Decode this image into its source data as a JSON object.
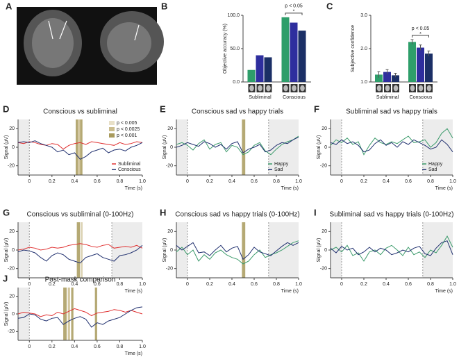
{
  "panel_labels": [
    "A",
    "B",
    "C",
    "D",
    "E",
    "F",
    "G",
    "H",
    "I",
    "J"
  ],
  "chart_data": [
    {
      "type": "bar",
      "ylabel": "Objective accuracy (%)",
      "categories": [
        "Subliminal",
        "Conscious"
      ],
      "series": [
        {
          "color": "#2e9e6a",
          "values": [
            18,
            97
          ]
        },
        {
          "color": "#2e2e9e",
          "values": [
            40,
            89
          ]
        },
        {
          "color": "#1b2f66",
          "values": [
            37,
            77
          ]
        }
      ],
      "ylim": [
        0,
        100
      ],
      "yticks": [
        {
          "value": 0,
          "label": "0.0"
        },
        {
          "value": 50,
          "label": "50.0"
        },
        {
          "value": 100,
          "label": "100.0"
        }
      ],
      "annotation": "p < 0.05",
      "star": "*"
    },
    {
      "type": "bar",
      "ylabel": "Subjective confidence",
      "categories": [
        "Subliminal",
        "Conscious"
      ],
      "series": [
        {
          "color": "#2e9e6a",
          "values": [
            1.22,
            2.2
          ],
          "errors": [
            0.09,
            0.07
          ]
        },
        {
          "color": "#2e2e9e",
          "values": [
            1.3,
            2.03
          ],
          "errors": [
            0.07,
            0.08
          ]
        },
        {
          "color": "#1b2f66",
          "values": [
            1.2,
            1.85
          ],
          "errors": [
            0.06,
            0.08
          ]
        }
      ],
      "ylim": [
        1,
        3
      ],
      "yticks": [
        {
          "value": 1,
          "label": "1.0"
        },
        {
          "value": 2,
          "label": "2.0"
        },
        {
          "value": 3,
          "label": "3.0"
        }
      ],
      "annotation": "p < 0.05",
      "star": "*"
    },
    {
      "type": "line",
      "title": "Conscious vs subliminal",
      "ylabel": "Signal (μV)",
      "xlabel": "Time (s)",
      "x": [
        -0.1,
        -0.05,
        0,
        0.05,
        0.1,
        0.15,
        0.2,
        0.25,
        0.3,
        0.35,
        0.4,
        0.45,
        0.5,
        0.55,
        0.6,
        0.65,
        0.7,
        0.75,
        0.8,
        0.85,
        0.9,
        0.95,
        1
      ],
      "series": [
        {
          "name": "Subliminal",
          "color": "#e03030",
          "values": [
            5,
            4,
            6,
            5,
            3,
            2,
            4,
            3,
            -2,
            2,
            4,
            5,
            3,
            6,
            5,
            4,
            3,
            2,
            5,
            3,
            4,
            6,
            5
          ]
        },
        {
          "name": "Conscious",
          "color": "#1f2f6e",
          "values": [
            5,
            6,
            5,
            7,
            4,
            2,
            0,
            -5,
            -3,
            -8,
            -6,
            -13,
            -10,
            -5,
            -3,
            -1,
            -6,
            -3,
            -2,
            -4,
            0,
            2,
            5
          ]
        }
      ],
      "xlim": [
        -0.1,
        1
      ],
      "xticks": [
        0,
        0.2,
        0.4,
        0.6,
        0.8,
        {
          "value": 1,
          "label": "1.0"
        }
      ],
      "ylim": [
        -30,
        30
      ],
      "yticks": [
        -20,
        0,
        20
      ],
      "shaded_x": [
        [
          -0.1,
          0
        ]
      ],
      "sig_bands": [
        {
          "x": [
            0.41,
            0.43
          ],
          "color": "#a89a5c"
        },
        {
          "x": [
            0.43,
            0.45
          ],
          "color": "#cbbd8f"
        },
        {
          "x": [
            0.45,
            0.47
          ],
          "color": "#a89a5c"
        }
      ],
      "sig_legend": [
        {
          "label": "p < 0.005",
          "color": "#e8e0c8"
        },
        {
          "label": "p < 0.0025",
          "color": "#cbbd8f"
        },
        {
          "label": "p < 0.001",
          "color": "#a89a5c"
        }
      ],
      "legend": "lower right"
    },
    {
      "type": "line",
      "title": "Conscious sad vs happy trials",
      "ylabel": "Signal (μV)",
      "xlabel": "Time (s)",
      "x": [
        -0.1,
        -0.05,
        0,
        0.05,
        0.1,
        0.15,
        0.2,
        0.25,
        0.3,
        0.35,
        0.4,
        0.45,
        0.5,
        0.55,
        0.6,
        0.65,
        0.7,
        0.75,
        0.8,
        0.85,
        0.9,
        0.95,
        1
      ],
      "series": [
        {
          "name": "Happy",
          "color": "#3a9a6a",
          "values": [
            3,
            5,
            2,
            -3,
            4,
            8,
            -2,
            3,
            5,
            -5,
            2,
            0,
            -8,
            -5,
            2,
            5,
            -4,
            -8,
            -2,
            3,
            6,
            8,
            12
          ]
        },
        {
          "name": "Sad",
          "color": "#1f2f6e",
          "values": [
            0,
            2,
            5,
            3,
            1,
            6,
            4,
            0,
            3,
            -2,
            4,
            6,
            -6,
            -2,
            0,
            3,
            -5,
            -3,
            2,
            5,
            4,
            8,
            11
          ]
        }
      ],
      "xlim": [
        -0.1,
        1
      ],
      "xticks": [
        0,
        0.2,
        0.4,
        0.6,
        0.8,
        {
          "value": 1,
          "label": "1.0"
        }
      ],
      "ylim": [
        -30,
        30
      ],
      "yticks": [
        -20,
        0,
        20
      ],
      "shaded_x": [
        [
          -0.1,
          0
        ],
        [
          0.73,
          1
        ]
      ],
      "sig_bands": [
        {
          "x": [
            0.49,
            0.52
          ],
          "color": "#a89a5c"
        }
      ],
      "legend": "lower right"
    },
    {
      "type": "line",
      "title": "Subliminal sad vs happy trials",
      "ylabel": "Signal (μV)",
      "xlabel": "Time (s)",
      "x": [
        -0.1,
        -0.05,
        0,
        0.05,
        0.1,
        0.15,
        0.2,
        0.25,
        0.3,
        0.35,
        0.4,
        0.45,
        0.5,
        0.55,
        0.6,
        0.65,
        0.7,
        0.75,
        0.8,
        0.85,
        0.9,
        0.95,
        1
      ],
      "series": [
        {
          "name": "Happy",
          "color": "#3a9a6a",
          "values": [
            2,
            8,
            5,
            10,
            3,
            6,
            -8,
            2,
            10,
            5,
            3,
            6,
            4,
            8,
            12,
            5,
            6,
            8,
            0,
            5,
            15,
            20,
            10
          ]
        },
        {
          "name": "Sad",
          "color": "#1f2f6e",
          "values": [
            5,
            3,
            8,
            4,
            6,
            2,
            -5,
            -3,
            4,
            8,
            2,
            5,
            0,
            6,
            3,
            8,
            5,
            2,
            -2,
            0,
            8,
            3,
            -5
          ]
        }
      ],
      "xlim": [
        -0.1,
        1
      ],
      "xticks": [
        0,
        0.2,
        0.4,
        0.6,
        0.8,
        {
          "value": 1,
          "label": "1.0"
        }
      ],
      "ylim": [
        -30,
        30
      ],
      "yticks": [
        -20,
        0,
        20
      ],
      "shaded_x": [
        [
          -0.1,
          0
        ],
        [
          0.73,
          1
        ]
      ],
      "legend": "lower right"
    },
    {
      "type": "line",
      "title": "Conscious vs subliminal (0-100Hz)",
      "ylabel": "Signal (μV)",
      "xlabel": "Time (s)",
      "x": [
        -0.1,
        -0.05,
        0,
        0.05,
        0.1,
        0.15,
        0.2,
        0.25,
        0.3,
        0.35,
        0.4,
        0.45,
        0.5,
        0.55,
        0.6,
        0.65,
        0.7,
        0.75,
        0.8,
        0.85,
        0.9,
        0.95,
        1
      ],
      "series": [
        {
          "color": "#e03030",
          "values": [
            0,
            1,
            3,
            2,
            0,
            1,
            3,
            2,
            3,
            5,
            6,
            7,
            6,
            4,
            3,
            5,
            6,
            2,
            3,
            4,
            3,
            5,
            2
          ]
        },
        {
          "color": "#1f2f6e",
          "values": [
            -2,
            0,
            -1,
            -3,
            -8,
            -12,
            -6,
            -3,
            -5,
            -10,
            -12,
            -14,
            -8,
            -6,
            -4,
            -8,
            -10,
            -12,
            -6,
            -5,
            -3,
            0,
            5
          ]
        }
      ],
      "xlim": [
        -0.1,
        1
      ],
      "xticks": [
        0,
        0.2,
        0.4,
        0.6,
        0.8,
        {
          "value": 1,
          "label": "1.0"
        }
      ],
      "ylim": [
        -30,
        30
      ],
      "yticks": [
        -20,
        0,
        20
      ],
      "shaded_x": [
        [
          -0.1,
          0
        ],
        [
          0.73,
          1
        ]
      ],
      "sig_bands": [
        {
          "x": [
            0.42,
            0.45
          ],
          "color": "#a89a5c"
        },
        {
          "x": [
            0.46,
            0.47
          ],
          "color": "#cbbd8f"
        }
      ]
    },
    {
      "type": "line",
      "title": "Conscious sad vs happy trials (0-100Hz)",
      "ylabel": "Signal (μV)",
      "xlabel": "Time (s)",
      "x": [
        -0.1,
        -0.05,
        0,
        0.05,
        0.1,
        0.15,
        0.2,
        0.25,
        0.3,
        0.35,
        0.4,
        0.45,
        0.5,
        0.55,
        0.6,
        0.65,
        0.7,
        0.75,
        0.8,
        0.85,
        0.9,
        0.95,
        1
      ],
      "series": [
        {
          "color": "#3a9a6a",
          "values": [
            -2,
            3,
            -5,
            0,
            -12,
            -5,
            -10,
            -3,
            0,
            -5,
            -8,
            -10,
            -15,
            -12,
            -5,
            0,
            -8,
            -5,
            -3,
            0,
            4,
            8,
            10
          ]
        },
        {
          "color": "#1f2f6e",
          "values": [
            5,
            0,
            4,
            8,
            -3,
            -2,
            -6,
            0,
            5,
            -2,
            2,
            4,
            -10,
            -5,
            3,
            -2,
            -4,
            -6,
            -1,
            4,
            8,
            5,
            8
          ]
        }
      ],
      "xlim": [
        -0.1,
        1
      ],
      "xticks": [
        0,
        0.2,
        0.4,
        0.6,
        0.8,
        {
          "value": 1,
          "label": "1.0"
        }
      ],
      "ylim": [
        -30,
        30
      ],
      "yticks": [
        -20,
        0,
        20
      ],
      "shaded_x": [
        [
          -0.1,
          0
        ],
        [
          0.73,
          1
        ]
      ],
      "sig_bands": [
        {
          "x": [
            0.49,
            0.52
          ],
          "color": "#a89a5c"
        }
      ]
    },
    {
      "type": "line",
      "title": "Subliminal sad vs happy trials (0-100Hz)",
      "ylabel": "Signal (μV)",
      "xlabel": "Time (s)",
      "x": [
        -0.1,
        -0.05,
        0,
        0.05,
        0.1,
        0.15,
        0.2,
        0.25,
        0.3,
        0.35,
        0.4,
        0.45,
        0.5,
        0.55,
        0.6,
        0.65,
        0.7,
        0.75,
        0.8,
        0.85,
        0.9,
        0.95,
        1
      ],
      "series": [
        {
          "color": "#3a9a6a",
          "values": [
            0,
            3,
            -2,
            5,
            -6,
            -3,
            -12,
            -2,
            0,
            -5,
            2,
            5,
            0,
            -6,
            3,
            -5,
            -2,
            -8,
            0,
            -3,
            5,
            15,
            3
          ]
        },
        {
          "color": "#1f2f6e",
          "values": [
            2,
            -3,
            4,
            0,
            2,
            -5,
            -2,
            3,
            -2,
            2,
            0,
            -5,
            -3,
            0,
            -2,
            2,
            4,
            -4,
            -6,
            2,
            8,
            10,
            -5
          ]
        }
      ],
      "xlim": [
        -0.1,
        1
      ],
      "xticks": [
        0,
        0.2,
        0.4,
        0.6,
        0.8,
        {
          "value": 1,
          "label": "1.0"
        }
      ],
      "ylim": [
        -30,
        30
      ],
      "yticks": [
        -20,
        0,
        20
      ],
      "shaded_x": [
        [
          -0.1,
          0
        ],
        [
          0.73,
          1
        ]
      ]
    },
    {
      "type": "line",
      "title": "Post-mask comparison",
      "ylabel": "Signal (μV)",
      "xlabel": "Time (s)",
      "x": [
        -0.1,
        -0.05,
        0,
        0.05,
        0.1,
        0.15,
        0.2,
        0.25,
        0.3,
        0.35,
        0.4,
        0.45,
        0.5,
        0.55,
        0.6,
        0.65,
        0.7,
        0.75,
        0.8,
        0.85,
        0.9,
        0.95,
        1
      ],
      "series": [
        {
          "color": "#e03030",
          "values": [
            0,
            2,
            1,
            0,
            -3,
            -1,
            -2,
            2,
            0,
            3,
            6,
            4,
            2,
            -2,
            1,
            2,
            3,
            5,
            4,
            2,
            4,
            2,
            0
          ]
        },
        {
          "color": "#1f2f6e",
          "values": [
            -5,
            -4,
            0,
            -1,
            -6,
            -8,
            -5,
            -4,
            -12,
            -8,
            -5,
            -3,
            -6,
            -15,
            -10,
            -12,
            -8,
            -6,
            -4,
            0,
            4,
            7,
            8
          ]
        }
      ],
      "xlim": [
        -0.1,
        1
      ],
      "xticks": [
        0,
        0.2,
        0.4,
        0.6,
        0.8,
        {
          "value": 1,
          "label": "1.0"
        }
      ],
      "ylim": [
        -30,
        30
      ],
      "yticks": [
        -20,
        0,
        20
      ],
      "shaded_x": [
        [
          -0.1,
          0
        ]
      ],
      "sig_bands": [
        {
          "x": [
            0.3,
            0.33
          ],
          "color": "#a89a5c"
        },
        {
          "x": [
            0.34,
            0.36
          ],
          "color": "#cbbd8f"
        },
        {
          "x": [
            0.37,
            0.39
          ],
          "color": "#a89a5c"
        },
        {
          "x": [
            0.58,
            0.6
          ],
          "color": "#a89a5c"
        }
      ]
    }
  ]
}
